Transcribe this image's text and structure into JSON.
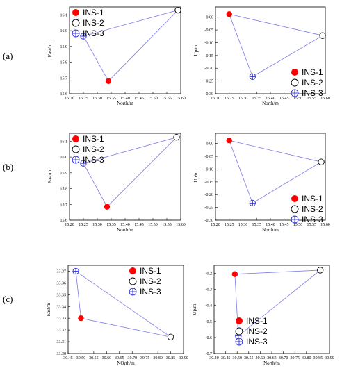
{
  "row_labels": [
    "(a)",
    "(b)",
    "(c)"
  ],
  "chart_data": [
    {
      "panel": "a-left",
      "type": "scatter",
      "xlabel": "North/m",
      "ylabel": "East/m",
      "xlim": [
        15.2,
        15.6
      ],
      "ylim": [
        15.6,
        16.15
      ],
      "xticks": [
        "15.20",
        "15.25",
        "15.30",
        "15.35",
        "15.40",
        "15.45",
        "15.50",
        "15.55",
        "15.60"
      ],
      "yticks": [
        "15.6",
        "15.7",
        "15.8",
        "15.9",
        "16.0",
        "16.1"
      ],
      "legend": [
        "INS-1",
        "INS-2",
        "INS-3"
      ],
      "legend_position": "top-left",
      "points": [
        {
          "name": "INS-1",
          "x": 15.34,
          "y": 15.68
        },
        {
          "name": "INS-2",
          "x": 15.59,
          "y": 16.13
        },
        {
          "name": "INS-3",
          "x": 15.25,
          "y": 15.965
        }
      ]
    },
    {
      "panel": "a-right",
      "type": "scatter",
      "xlabel": "North/m",
      "ylabel": "Up/m",
      "xlim": [
        15.2,
        15.6
      ],
      "ylim": [
        -0.3,
        0.04
      ],
      "xticks": [
        "15.20",
        "15.25",
        "15.30",
        "15.35",
        "15.40",
        "15.45",
        "15.50",
        "15.55",
        "15.60"
      ],
      "yticks": [
        "0.00",
        "-0.05",
        "-0.10",
        "-0.15",
        "-0.20",
        "-0.25",
        "-0.30"
      ],
      "legend": [
        "INS-1",
        "INS-2",
        "INS-3"
      ],
      "legend_position": "bottom-right",
      "points": [
        {
          "name": "INS-1",
          "x": 15.25,
          "y": 0.012
        },
        {
          "name": "INS-2",
          "x": 15.59,
          "y": -0.072
        },
        {
          "name": "INS-3",
          "x": 15.335,
          "y": -0.233
        }
      ]
    },
    {
      "panel": "b-left",
      "type": "scatter",
      "xlabel": "North/m",
      "ylabel": "East/m",
      "xlim": [
        15.2,
        15.6
      ],
      "ylim": [
        15.6,
        16.15
      ],
      "xticks": [
        "15.20",
        "15.25",
        "15.30",
        "15.35",
        "15.40",
        "15.45",
        "15.50",
        "15.55",
        "15.60"
      ],
      "yticks": [
        "15.6",
        "15.7",
        "15.8",
        "15.9",
        "16.0",
        "16.1"
      ],
      "legend": [
        "INS-1",
        "INS-2",
        "INS-3"
      ],
      "legend_position": "top-left",
      "points": [
        {
          "name": "INS-1",
          "x": 15.335,
          "y": 15.685
        },
        {
          "name": "INS-2",
          "x": 15.585,
          "y": 16.125
        },
        {
          "name": "INS-3",
          "x": 15.25,
          "y": 15.96
        }
      ]
    },
    {
      "panel": "b-right",
      "type": "scatter",
      "xlabel": "North/m",
      "ylabel": "Up/m",
      "xlim": [
        15.2,
        15.6
      ],
      "ylim": [
        -0.3,
        0.04
      ],
      "xticks": [
        "15.20",
        "15.25",
        "15.30",
        "15.35",
        "15.40",
        "15.45",
        "15.50",
        "15.55",
        "15.60"
      ],
      "yticks": [
        "0.00",
        "-0.05",
        "-0.10",
        "-0.15",
        "-0.20",
        "-0.25",
        "-0.30"
      ],
      "legend": [
        "INS-1",
        "INS-2",
        "INS-3"
      ],
      "legend_position": "bottom-right",
      "points": [
        {
          "name": "INS-1",
          "x": 15.25,
          "y": 0.012
        },
        {
          "name": "INS-2",
          "x": 15.585,
          "y": -0.072
        },
        {
          "name": "INS-3",
          "x": 15.335,
          "y": -0.233
        }
      ]
    },
    {
      "panel": "c-left",
      "type": "scatter",
      "xlabel": "NOrth/m",
      "ylabel": "East/m",
      "xlim": [
        30.45,
        30.9
      ],
      "ylim": [
        33.3,
        33.375
      ],
      "xticks": [
        "30.45",
        "30.50",
        "30.55",
        "30.60",
        "30.65",
        "30.70",
        "30.75",
        "30.80",
        "30.85",
        "30.90"
      ],
      "yticks": [
        "33.30",
        "33.31",
        "33.32",
        "33.33",
        "33.34",
        "33.35",
        "33.36",
        "33.37"
      ],
      "legend": [
        "INS-1",
        "INS-2",
        "INS-3"
      ],
      "legend_position": "top-right",
      "points": [
        {
          "name": "INS-1",
          "x": 30.5,
          "y": 33.33
        },
        {
          "name": "INS-2",
          "x": 30.85,
          "y": 33.314
        },
        {
          "name": "INS-3",
          "x": 30.48,
          "y": 33.37
        }
      ]
    },
    {
      "panel": "c-right",
      "type": "scatter",
      "xlabel": "North/m",
      "ylabel": "Up/m",
      "xlim": [
        30.4,
        30.9
      ],
      "ylim": [
        -0.7,
        -0.15
      ],
      "xticks": [
        "30.40",
        "30.45",
        "30.50",
        "30.55",
        "30.60",
        "30.65",
        "30.70",
        "30.75",
        "30.80",
        "30.85",
        "30.90"
      ],
      "yticks": [
        "-0.2",
        "-0.3",
        "-0.4",
        "-0.5",
        "-0.6",
        "-0.7"
      ],
      "legend": [
        "INS-1",
        "INS-2",
        "INS-3"
      ],
      "legend_position": "bottom-left",
      "points": [
        {
          "name": "INS-1",
          "x": 30.49,
          "y": -0.205
        },
        {
          "name": "INS-2",
          "x": 30.86,
          "y": -0.18
        },
        {
          "name": "INS-3",
          "x": 30.505,
          "y": -0.59
        }
      ]
    }
  ]
}
